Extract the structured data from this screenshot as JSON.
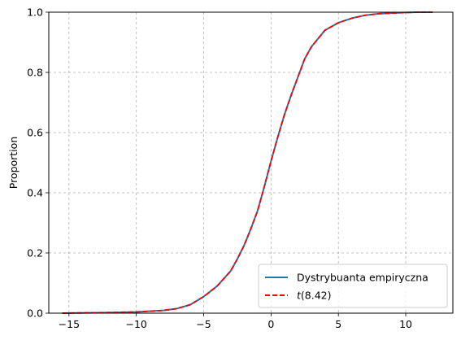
{
  "chart_data": {
    "type": "line",
    "title": "",
    "xlabel": "",
    "ylabel": "Proportion",
    "xlim": [
      -16.5,
      13.5
    ],
    "ylim": [
      0,
      1.0
    ],
    "xticks": [
      -15,
      -10,
      -5,
      0,
      5,
      10
    ],
    "xtick_labels": [
      "−15",
      "−10",
      "−5",
      "0",
      "5",
      "10"
    ],
    "yticks": [
      0.0,
      0.2,
      0.4,
      0.6,
      0.8,
      1.0
    ],
    "ytick_labels": [
      "0.0",
      "0.2",
      "0.4",
      "0.6",
      "0.8",
      "1.0"
    ],
    "grid": true,
    "legend_position": "bottom-right",
    "series": [
      {
        "name": "Dystrybuanta empiryczna",
        "color": "#1f77b4",
        "style": "solid",
        "x": [
          -15.5,
          -12,
          -10,
          -8,
          -7,
          -6,
          -5,
          -4,
          -3,
          -2.5,
          -2,
          -1.5,
          -1,
          -0.5,
          0,
          0.5,
          1,
          1.5,
          2,
          2.5,
          3,
          4,
          5,
          6,
          7,
          8,
          9,
          10,
          11,
          12
        ],
        "y": [
          0.0,
          0.002,
          0.004,
          0.009,
          0.015,
          0.028,
          0.055,
          0.09,
          0.14,
          0.18,
          0.225,
          0.28,
          0.34,
          0.42,
          0.505,
          0.585,
          0.66,
          0.725,
          0.785,
          0.845,
          0.885,
          0.94,
          0.965,
          0.98,
          0.99,
          0.995,
          0.997,
          0.999,
          1.0,
          1.0
        ]
      },
      {
        "name": "t(8.42)",
        "color": "#ff0000",
        "style": "dashed",
        "x": [
          -15.5,
          -12,
          -10,
          -8,
          -7,
          -6,
          -5,
          -4,
          -3,
          -2.5,
          -2,
          -1.5,
          -1,
          -0.5,
          0,
          0.5,
          1,
          1.5,
          2,
          2.5,
          3,
          4,
          5,
          6,
          7,
          8,
          9,
          10,
          11,
          12
        ],
        "y": [
          0.0,
          0.002,
          0.004,
          0.009,
          0.015,
          0.028,
          0.055,
          0.09,
          0.14,
          0.18,
          0.225,
          0.28,
          0.34,
          0.42,
          0.505,
          0.585,
          0.66,
          0.725,
          0.785,
          0.845,
          0.885,
          0.94,
          0.965,
          0.98,
          0.99,
          0.995,
          0.997,
          0.999,
          1.0,
          1.0
        ]
      }
    ]
  },
  "legend": {
    "items": [
      {
        "label": "Dystrybuanta empiryczna",
        "color": "#1f77b4",
        "style": "solid"
      },
      {
        "label_italic": "t",
        "label_rest": "(8.42)",
        "color": "#ff0000",
        "style": "dashed"
      }
    ]
  }
}
